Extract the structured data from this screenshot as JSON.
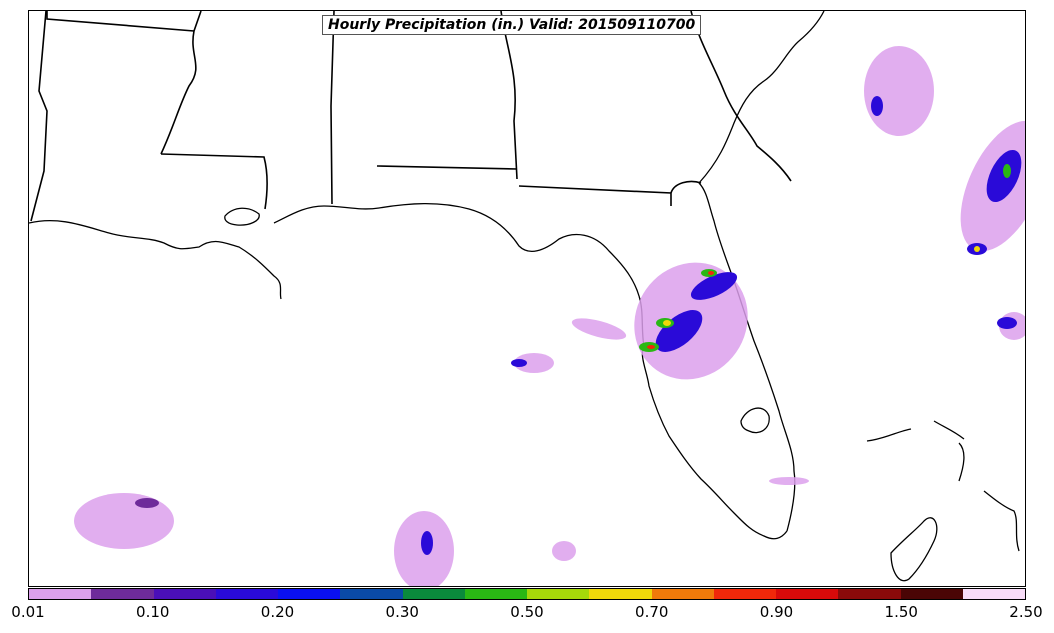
{
  "title": "Hourly Precipitation (in.) Valid: 201509110700",
  "colorbar": {
    "colors": [
      "#dca0ec",
      "#6e2b9a",
      "#4a0fb8",
      "#2a0ad8",
      "#0a10f0",
      "#0a4aa6",
      "#0a8a3c",
      "#2ab814",
      "#a6d80a",
      "#f0d80a",
      "#f07a0a",
      "#f0280a",
      "#d80a0a",
      "#8a0a0a",
      "#4a0505",
      "#f8dcf8"
    ],
    "labels": [
      "0.01",
      "0.10",
      "0.20",
      "0.30",
      "0.50",
      "0.70",
      "0.90",
      "1.50",
      "2.50"
    ]
  }
}
